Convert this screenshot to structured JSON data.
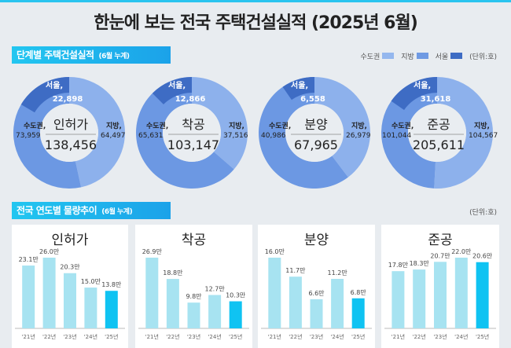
{
  "title": "한눈에 보는 전국 주택건설실적 (2025년 6월)",
  "section1": {
    "label": "단계별 주택건설실적",
    "sub": "(6월 누계)"
  },
  "legend": {
    "items": [
      {
        "label": "수도권",
        "color": "#94b7ee"
      },
      {
        "label": "지방",
        "color": "#6f9ae3"
      },
      {
        "label": "서울",
        "color": "#3e6cc4"
      }
    ],
    "unit": "(단위:호)"
  },
  "colors": {
    "jibang": "#8db1ec",
    "sudo": "#6c98e3",
    "seoul": "#3e6cc4",
    "bar": "#a7e3f1",
    "bar_current": "#0fc3f2"
  },
  "donuts": [
    {
      "name": "인허가",
      "total": "138,456",
      "sudo_label": "수도권,",
      "sudo": 73959,
      "sudo_text": "73,959",
      "jibang_label": "지방,",
      "jibang": 64497,
      "jibang_text": "64,497",
      "seoul_label": "서울,",
      "seoul": 22898,
      "seoul_text": "22,898"
    },
    {
      "name": "착공",
      "total": "103,147",
      "sudo_label": "수도권,",
      "sudo": 65631,
      "sudo_text": "65,631",
      "jibang_label": "지방,",
      "jibang": 37516,
      "jibang_text": "37,516",
      "seoul_label": "서울,",
      "seoul": 12866,
      "seoul_text": "12,866"
    },
    {
      "name": "분양",
      "total": "67,965",
      "sudo_label": "수도권,",
      "sudo": 40986,
      "sudo_text": "40,986",
      "jibang_label": "지방,",
      "jibang": 26979,
      "jibang_text": "26,979",
      "seoul_label": "서울,",
      "seoul": 6558,
      "seoul_text": "6,558"
    },
    {
      "name": "준공",
      "total": "205,611",
      "sudo_label": "수도권,",
      "sudo": 101044,
      "sudo_text": "101,044",
      "jibang_label": "지방,",
      "jibang": 104567,
      "jibang_text": "104,567",
      "seoul_label": "서울,",
      "seoul": 31618,
      "seoul_text": "31,618"
    }
  ],
  "section2": {
    "label": "전국 연도별 물량추이",
    "sub": "(6월 누계)",
    "unit": "(단위:호)"
  },
  "chart_data": [
    {
      "type": "bar",
      "title": "인허가",
      "categories": [
        "'21년",
        "'22년",
        "'23년",
        "'24년",
        "'25년"
      ],
      "values": [
        23.1,
        26.0,
        20.3,
        15.0,
        13.8
      ],
      "labels": [
        "23.1만",
        "26.0만",
        "20.3만",
        "15.0만",
        "13.8만"
      ]
    },
    {
      "type": "bar",
      "title": "착공",
      "categories": [
        "'21년",
        "'22년",
        "'23년",
        "'24년",
        "'25년"
      ],
      "values": [
        26.9,
        18.8,
        9.8,
        12.7,
        10.3
      ],
      "labels": [
        "26.9만",
        "18.8만",
        "9.8만",
        "12.7만",
        "10.3만"
      ]
    },
    {
      "type": "bar",
      "title": "분양",
      "categories": [
        "'21년",
        "'22년",
        "'23년",
        "'24년",
        "'25년"
      ],
      "values": [
        16.0,
        11.7,
        6.6,
        11.2,
        6.8
      ],
      "labels": [
        "16.0만",
        "11.7만",
        "6.6만",
        "11.2만",
        "6.8만"
      ]
    },
    {
      "type": "bar",
      "title": "준공",
      "categories": [
        "'21년",
        "'22년",
        "'23년",
        "'24년",
        "'25년"
      ],
      "values": [
        17.8,
        18.3,
        20.7,
        22.0,
        20.6
      ],
      "labels": [
        "17.8만",
        "18.3만",
        "20.7만",
        "22.0만",
        "20.6만"
      ]
    }
  ]
}
